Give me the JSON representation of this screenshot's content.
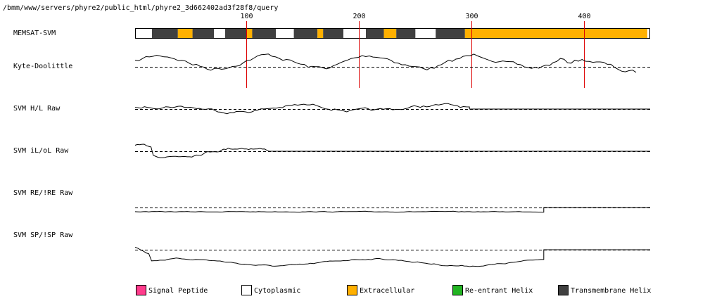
{
  "header": {
    "path": "/bmm/www/servers/phyre2/public_html/phyre2_3d662402ad3f28f8/query"
  },
  "chart_data": {
    "type": "line",
    "sequence_length": 456,
    "x_ticks": [
      "100",
      "200",
      "300",
      "400"
    ],
    "tracks": [
      {
        "label": "MEMSAT-SVM",
        "kind": "topology"
      },
      {
        "label": "Kyte-Doolittle",
        "kind": "trace"
      },
      {
        "label": "SVM H/L Raw",
        "kind": "trace"
      },
      {
        "label": "SVM iL/oL Raw",
        "kind": "trace"
      },
      {
        "label": "SVM RE/!RE Raw",
        "kind": "trace"
      },
      {
        "label": "SVM SP/!SP Raw",
        "kind": "trace"
      }
    ],
    "topology_segments": [
      {
        "type": "cytoplasmic",
        "start": 1,
        "end": 16
      },
      {
        "type": "transmembrane",
        "start": 16,
        "end": 39
      },
      {
        "type": "extracellular",
        "start": 39,
        "end": 52
      },
      {
        "type": "transmembrane",
        "start": 52,
        "end": 71
      },
      {
        "type": "cytoplasmic",
        "start": 71,
        "end": 81
      },
      {
        "type": "transmembrane",
        "start": 81,
        "end": 100
      },
      {
        "type": "extracellular",
        "start": 100,
        "end": 105
      },
      {
        "type": "transmembrane",
        "start": 105,
        "end": 126
      },
      {
        "type": "cytoplasmic",
        "start": 126,
        "end": 142
      },
      {
        "type": "transmembrane",
        "start": 142,
        "end": 163
      },
      {
        "type": "extracellular",
        "start": 163,
        "end": 168
      },
      {
        "type": "transmembrane",
        "start": 168,
        "end": 186
      },
      {
        "type": "cytoplasmic",
        "start": 186,
        "end": 206
      },
      {
        "type": "transmembrane",
        "start": 206,
        "end": 222
      },
      {
        "type": "extracellular",
        "start": 222,
        "end": 233
      },
      {
        "type": "transmembrane",
        "start": 233,
        "end": 250
      },
      {
        "type": "cytoplasmic",
        "start": 250,
        "end": 268
      },
      {
        "type": "transmembrane",
        "start": 268,
        "end": 294
      },
      {
        "type": "extracellular",
        "start": 294,
        "end": 456
      }
    ],
    "legend": [
      {
        "label": "Signal Peptide",
        "color": "#ff3c8c"
      },
      {
        "label": "Cytoplasmic",
        "color": "#ffffff"
      },
      {
        "label": "Extracellular",
        "color": "#ffb000"
      },
      {
        "label": "Re-entrant Helix",
        "color": "#22b422"
      },
      {
        "label": "Transmembrane Helix",
        "color": "#404040"
      }
    ],
    "colors": {
      "marker_line": "#dd0000",
      "trace": "#000000"
    }
  }
}
